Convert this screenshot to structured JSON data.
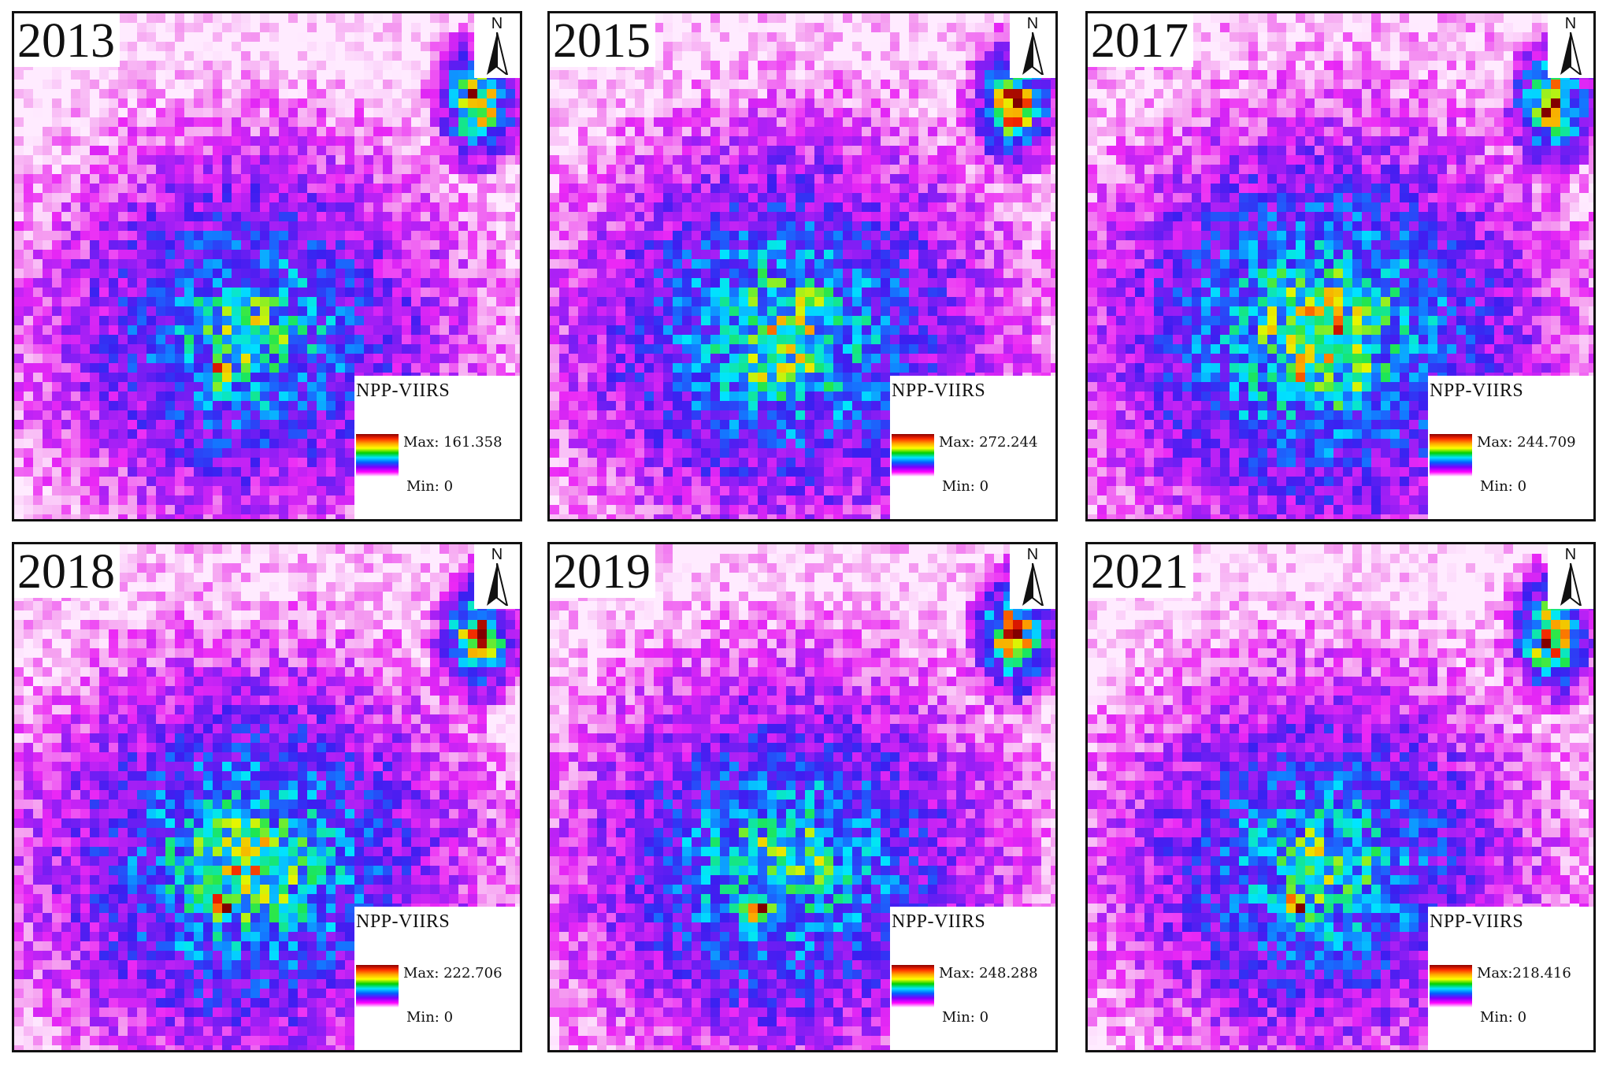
{
  "legend_title": "NPP-VIIRS",
  "north_label": "N",
  "max_prefix": "Max:",
  "min_prefix": "Min:",
  "color_ramp": [
    "#8b0000",
    "#ff2a00",
    "#ffa500",
    "#ffff00",
    "#00d000",
    "#00e5ff",
    "#0060ff",
    "#7a00ff",
    "#ff00ff",
    "#ffffff"
  ],
  "panels": [
    {
      "year": "2013",
      "max": "161.358",
      "min": "0",
      "max_text": "Max: 161.358",
      "min_text": "Min: 0"
    },
    {
      "year": "2015",
      "max": "272.244",
      "min": "0",
      "max_text": "Max: 272.244",
      "min_text": "Min: 0"
    },
    {
      "year": "2017",
      "max": "244.709",
      "min": "0",
      "max_text": "Max: 244.709",
      "min_text": "Min: 0"
    },
    {
      "year": "2018",
      "max": "222.706",
      "min": "0",
      "max_text": "Max: 222.706",
      "min_text": "Min: 0"
    },
    {
      "year": "2019",
      "max": "248.288",
      "min": "0",
      "max_text": "Max: 248.288",
      "min_text": "Min: 0"
    },
    {
      "year": "2021",
      "max": "218.416",
      "min": "0",
      "max_text": "Max:218.416",
      "min_text": "Min: 0"
    }
  ]
}
